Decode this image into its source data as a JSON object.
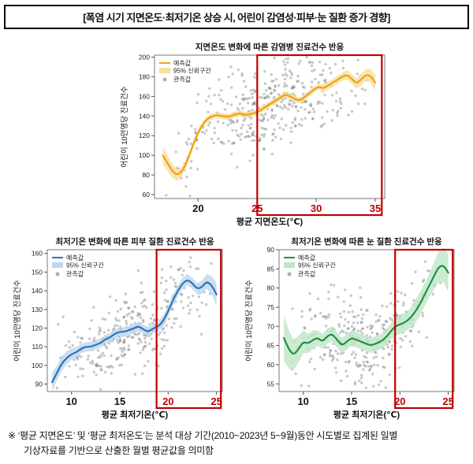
{
  "page": {
    "title": "[폭염 시기 지면온도·최저기온 상승 시, 어린이 감염성·피부·눈 질환 증가 경향]",
    "footnote_line1": "※ ‘평균 지면온도’ 및 ‘평균 최저온도’는 분석 대상 기간(2010~2023년 5~9월)동안 시도별로 집계된 일별",
    "footnote_line2": "기상자료를 기반으로 산출한 월별 평균값을 의미함"
  },
  "legend": {
    "predicted": "예측값",
    "ci": "95% 신뢰구간",
    "observed": "관측값"
  },
  "colors": {
    "highlight_red": "#C00000",
    "scatter_gray": "#6f6f6f",
    "orange": "#F0A30A",
    "blue": "#2E74B5",
    "green": "#1E9149"
  },
  "chart_data": [
    {
      "id": "infection",
      "type": "line+scatter",
      "title": "지면온도 변화에 따른 감염병 진료건수 반응",
      "xlabel": "평균 지면온도(℃)",
      "ylabel": "어린이 10만명당 진료건수",
      "xlim": [
        16.3,
        35.8
      ],
      "ylim": [
        56,
        202
      ],
      "xticks": [
        20,
        25,
        30,
        35
      ],
      "red_xticks": [
        25,
        30,
        35
      ],
      "yticks": [
        60,
        80,
        100,
        120,
        140,
        160,
        180,
        200
      ],
      "line_color": "#F0A30A",
      "band_color": "#F8DFA0",
      "highlight": {
        "x1": 25,
        "x2": 35.55,
        "color": "#C00000"
      },
      "x": [
        17,
        17.4,
        17.8,
        18.2,
        18.6,
        19,
        19.4,
        19.8,
        20.2,
        20.6,
        21,
        21.5,
        22,
        22.5,
        23,
        23.5,
        24,
        24.5,
        25,
        25.4,
        25.8,
        26.2,
        26.6,
        27,
        27.4,
        27.8,
        28.2,
        28.6,
        29,
        29.4,
        29.8,
        30.2,
        30.6,
        31,
        31.4,
        31.8,
        32.2,
        32.6,
        33,
        33.4,
        33.8,
        34.2,
        34.6,
        35
      ],
      "y": [
        100,
        92,
        84,
        80,
        83,
        92,
        105,
        118,
        128,
        135,
        139,
        141,
        140,
        139,
        141,
        143,
        141,
        142,
        144,
        147,
        150,
        153,
        156,
        159,
        162,
        160,
        157,
        156,
        159,
        163,
        167,
        170,
        168,
        171,
        174,
        177,
        180,
        182,
        178,
        173,
        177,
        182,
        181,
        174
      ],
      "band_halfwidth": [
        9,
        8,
        7,
        6,
        5,
        4,
        4,
        3,
        3,
        3,
        3,
        3,
        3,
        3,
        3,
        3,
        3,
        3,
        3,
        3,
        3,
        3,
        3,
        3,
        3,
        3,
        3,
        3,
        3,
        3,
        3,
        3,
        4,
        4,
        4,
        4,
        4,
        5,
        5,
        5,
        6,
        6,
        7,
        8
      ],
      "scatter": {
        "count": 400,
        "noise_sd": 24,
        "seed": 11
      }
    },
    {
      "id": "skin",
      "type": "line+scatter",
      "title": "최저기온 변화에 따른 피부 질환 진료건수 반응",
      "xlabel": "평균 최저기온(℃)",
      "ylabel": "어린이 10만명당 진료건수",
      "xlim": [
        7.5,
        25.6
      ],
      "ylim": [
        86,
        162
      ],
      "xticks": [
        10,
        15,
        20,
        25
      ],
      "red_xticks": [
        20,
        25
      ],
      "yticks": [
        90,
        100,
        110,
        120,
        130,
        140,
        150,
        160
      ],
      "line_color": "#2E74B5",
      "band_color": "#BDD7EE",
      "highlight": {
        "x1": 18.8,
        "x2": 25.45,
        "color": "#C00000"
      },
      "x": [
        8,
        8.5,
        9,
        9.5,
        10,
        10.5,
        11,
        11.5,
        12,
        12.5,
        13,
        13.5,
        14,
        14.5,
        15,
        15.5,
        16,
        16.5,
        17,
        17.5,
        18,
        18.5,
        19,
        19.5,
        20,
        20.5,
        21,
        21.5,
        22,
        22.5,
        23,
        23.5,
        24,
        24.5,
        25
      ],
      "y": [
        91,
        96,
        101,
        104,
        106,
        107,
        109,
        110,
        110,
        111,
        112,
        114,
        115,
        117,
        118,
        118,
        119,
        120,
        121,
        119,
        118,
        120,
        121,
        124,
        129,
        135,
        140,
        144,
        146,
        144,
        141,
        142,
        145,
        143,
        138
      ],
      "band_halfwidth": [
        5,
        4,
        4,
        3.5,
        3,
        3,
        2.5,
        2.5,
        2.5,
        2.5,
        2.5,
        2.5,
        2.5,
        2.5,
        2.5,
        2.5,
        2.5,
        2.5,
        2.5,
        2.5,
        2.5,
        2.5,
        2.5,
        3,
        3,
        3,
        3,
        3,
        3,
        3,
        3,
        3.5,
        4,
        5,
        6
      ],
      "scatter": {
        "count": 320,
        "noise_sd": 12,
        "seed": 23
      }
    },
    {
      "id": "eye",
      "type": "line+scatter",
      "title": "최저기온 변화에 따른 눈 질환 진료건수 반응",
      "xlabel": "평균 최저기온(℃)",
      "ylabel": "어린이 10만명당 진료건수",
      "xlim": [
        7.5,
        25.6
      ],
      "ylim": [
        53,
        90
      ],
      "xticks": [
        10,
        15,
        20,
        25
      ],
      "red_xticks": [
        20,
        25
      ],
      "yticks": [
        55,
        60,
        65,
        70,
        75,
        80,
        85,
        90
      ],
      "line_color": "#1E9149",
      "band_color": "#BFE6C6",
      "highlight": {
        "x1": 19.5,
        "x2": 25.45,
        "color": "#C00000"
      },
      "x": [
        8,
        8.5,
        9,
        9.5,
        10,
        10.5,
        11,
        11.5,
        12,
        12.5,
        13,
        13.5,
        14,
        14.5,
        15,
        15.5,
        16,
        16.5,
        17,
        17.5,
        18,
        18.5,
        19,
        19.5,
        20,
        20.5,
        21,
        21.5,
        22,
        22.5,
        23,
        23.5,
        24,
        24.5,
        25
      ],
      "y": [
        67,
        64,
        62.5,
        64,
        66,
        65.5,
        66.5,
        67,
        66,
        67.5,
        68,
        66.5,
        65,
        66,
        67,
        66.5,
        66,
        65.5,
        65,
        65.5,
        66,
        67,
        68.5,
        70,
        70.5,
        71,
        72,
        73.5,
        75.5,
        78,
        80.5,
        83,
        85.5,
        86,
        84
      ],
      "band_halfwidth": [
        6,
        5,
        4,
        3.5,
        3,
        2.5,
        2.5,
        2,
        2,
        2,
        2,
        2,
        2,
        2,
        2,
        2,
        2,
        2,
        2,
        2,
        2,
        2,
        2,
        2.5,
        2.5,
        2.5,
        2.5,
        3,
        3,
        3,
        3,
        3.5,
        4,
        4.5,
        5
      ],
      "scatter": {
        "count": 320,
        "noise_sd": 6.5,
        "seed": 42
      }
    }
  ]
}
